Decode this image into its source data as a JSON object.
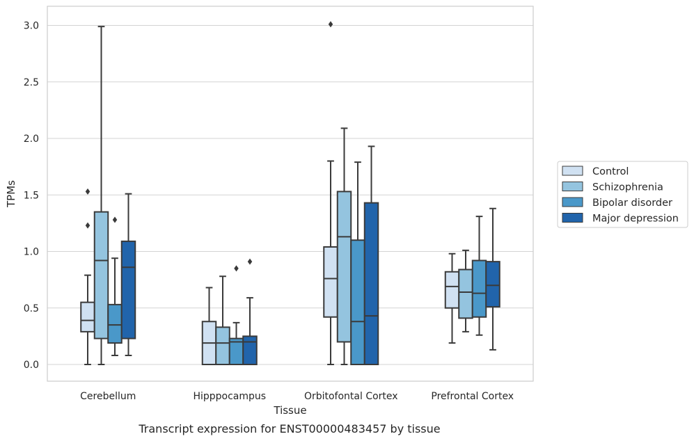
{
  "chart_data": {
    "type": "boxplot",
    "xlabel": "Tissue",
    "ylabel": "TPMs",
    "caption": "Transcript expression for ENST00000483457 by tissue",
    "ylim": [
      -0.15,
      3.17
    ],
    "yticks": [
      0.0,
      0.5,
      1.0,
      1.5,
      2.0,
      2.5,
      3.0
    ],
    "ytick_labels": [
      "0.0",
      "0.5",
      "1.0",
      "1.5",
      "2.0",
      "2.5",
      "3.0"
    ],
    "grid": "horizontal",
    "legend_position": "right",
    "categories": [
      "Cerebellum",
      "Hipppocampus",
      "Orbitofontal Cortex",
      "Prefrontal Cortex"
    ],
    "series": [
      {
        "name": "Control",
        "color": "#d0e1f2",
        "boxes": [
          {
            "whisker_low": 0.0,
            "q1": 0.29,
            "median": 0.39,
            "q3": 0.55,
            "whisker_high": 0.79,
            "outliers": [
              1.23,
              1.53
            ]
          },
          {
            "whisker_low": 0.0,
            "q1": 0.0,
            "median": 0.19,
            "q3": 0.38,
            "whisker_high": 0.68,
            "outliers": []
          },
          {
            "whisker_low": 0.0,
            "q1": 0.42,
            "median": 0.76,
            "q3": 1.04,
            "whisker_high": 1.8,
            "outliers": [
              3.01
            ]
          },
          {
            "whisker_low": 0.19,
            "q1": 0.5,
            "median": 0.69,
            "q3": 0.82,
            "whisker_high": 0.98,
            "outliers": []
          }
        ]
      },
      {
        "name": "Schizophrenia",
        "color": "#94c4df",
        "boxes": [
          {
            "whisker_low": 0.0,
            "q1": 0.23,
            "median": 0.92,
            "q3": 1.35,
            "whisker_high": 2.99,
            "outliers": []
          },
          {
            "whisker_low": 0.0,
            "q1": 0.0,
            "median": 0.19,
            "q3": 0.33,
            "whisker_high": 0.78,
            "outliers": []
          },
          {
            "whisker_low": 0.0,
            "q1": 0.2,
            "median": 1.13,
            "q3": 1.53,
            "whisker_high": 2.09,
            "outliers": []
          },
          {
            "whisker_low": 0.29,
            "q1": 0.41,
            "median": 0.64,
            "q3": 0.84,
            "whisker_high": 1.01,
            "outliers": []
          }
        ]
      },
      {
        "name": "Bipolar disorder",
        "color": "#4a98c9",
        "boxes": [
          {
            "whisker_low": 0.08,
            "q1": 0.19,
            "median": 0.35,
            "q3": 0.53,
            "whisker_high": 0.94,
            "outliers": [
              1.28
            ]
          },
          {
            "whisker_low": 0.0,
            "q1": 0.0,
            "median": 0.2,
            "q3": 0.23,
            "whisker_high": 0.37,
            "outliers": [
              0.85
            ]
          },
          {
            "whisker_low": 0.0,
            "q1": 0.0,
            "median": 0.38,
            "q3": 1.1,
            "whisker_high": 1.79,
            "outliers": []
          },
          {
            "whisker_low": 0.26,
            "q1": 0.42,
            "median": 0.63,
            "q3": 0.92,
            "whisker_high": 1.31,
            "outliers": []
          }
        ]
      },
      {
        "name": "Major depression",
        "color": "#2164ab",
        "boxes": [
          {
            "whisker_low": 0.08,
            "q1": 0.23,
            "median": 0.86,
            "q3": 1.09,
            "whisker_high": 1.51,
            "outliers": []
          },
          {
            "whisker_low": 0.0,
            "q1": 0.0,
            "median": 0.2,
            "q3": 0.25,
            "whisker_high": 0.59,
            "outliers": [
              0.91
            ]
          },
          {
            "whisker_low": 0.0,
            "q1": 0.0,
            "median": 0.43,
            "q3": 1.43,
            "whisker_high": 1.93,
            "outliers": []
          },
          {
            "whisker_low": 0.13,
            "q1": 0.51,
            "median": 0.7,
            "q3": 0.91,
            "whisker_high": 1.38,
            "outliers": []
          }
        ]
      }
    ]
  }
}
